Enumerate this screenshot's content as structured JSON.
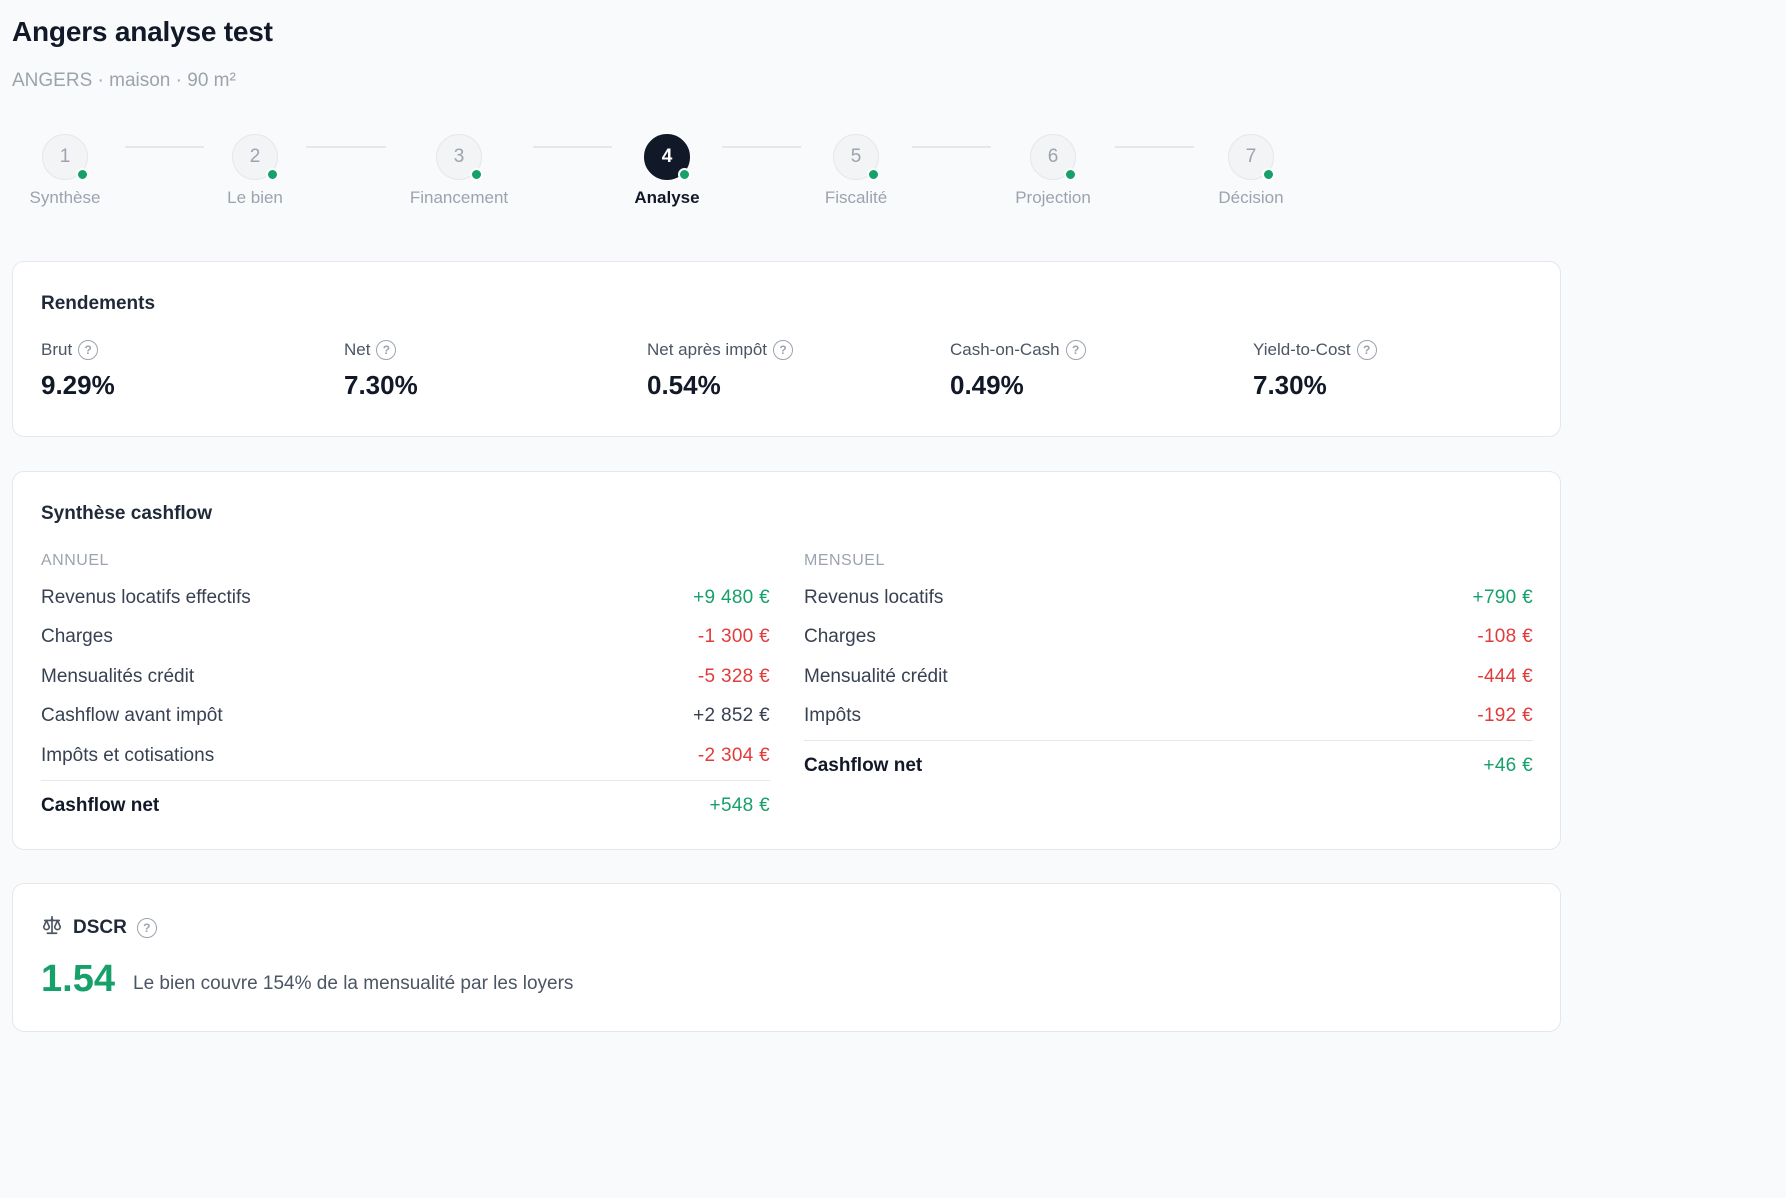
{
  "header": {
    "title": "Angers analyse test",
    "subtitle": "ANGERS · maison · 90 m²"
  },
  "stepper": {
    "steps": [
      {
        "number": "1",
        "label": "Synthèse",
        "state": "done"
      },
      {
        "number": "2",
        "label": "Le bien",
        "state": "done"
      },
      {
        "number": "3",
        "label": "Financement",
        "state": "done"
      },
      {
        "number": "4",
        "label": "Analyse",
        "state": "active"
      },
      {
        "number": "5",
        "label": "Fiscalité",
        "state": "done"
      },
      {
        "number": "6",
        "label": "Projection",
        "state": "done"
      },
      {
        "number": "7",
        "label": "Décision",
        "state": "done"
      }
    ]
  },
  "rendements": {
    "title": "Rendements",
    "metrics": [
      {
        "label": "Brut",
        "value": "9.29%"
      },
      {
        "label": "Net",
        "value": "7.30%"
      },
      {
        "label": "Net après impôt",
        "value": "0.54%"
      },
      {
        "label": "Cash-on-Cash",
        "value": "0.49%"
      },
      {
        "label": "Yield-to-Cost",
        "value": "7.30%"
      }
    ]
  },
  "cashflow": {
    "title": "Synthèse cashflow",
    "annuel": {
      "heading": "ANNUEL",
      "rows": [
        {
          "label": "Revenus locatifs effectifs",
          "value": "+9 480 €",
          "tone": "pos"
        },
        {
          "label": "Charges",
          "value": "-1 300 €",
          "tone": "neg"
        },
        {
          "label": "Mensualités crédit",
          "value": "-5 328 €",
          "tone": "neg"
        },
        {
          "label": "Cashflow avant impôt",
          "value": "+2 852 €",
          "tone": "neutral"
        },
        {
          "label": "Impôts et cotisations",
          "value": "-2 304 €",
          "tone": "neg"
        }
      ],
      "total": {
        "label": "Cashflow net",
        "value": "+548 €",
        "tone": "pos"
      }
    },
    "mensuel": {
      "heading": "MENSUEL",
      "rows": [
        {
          "label": "Revenus locatifs",
          "value": "+790 €",
          "tone": "pos"
        },
        {
          "label": "Charges",
          "value": "-108 €",
          "tone": "neg"
        },
        {
          "label": "Mensualité crédit",
          "value": "-444 €",
          "tone": "neg"
        },
        {
          "label": "Impôts",
          "value": "-192 €",
          "tone": "neg"
        }
      ],
      "total": {
        "label": "Cashflow net",
        "value": "+46 €",
        "tone": "pos"
      }
    }
  },
  "dscr": {
    "title": "DSCR",
    "icon": "scale-icon",
    "value": "1.54",
    "description": "Le bien couvre 154% de la mensualité par les loyers"
  },
  "colors": {
    "positive": "#16a06a",
    "negative": "#e23b3b",
    "active_step": "#111827"
  }
}
